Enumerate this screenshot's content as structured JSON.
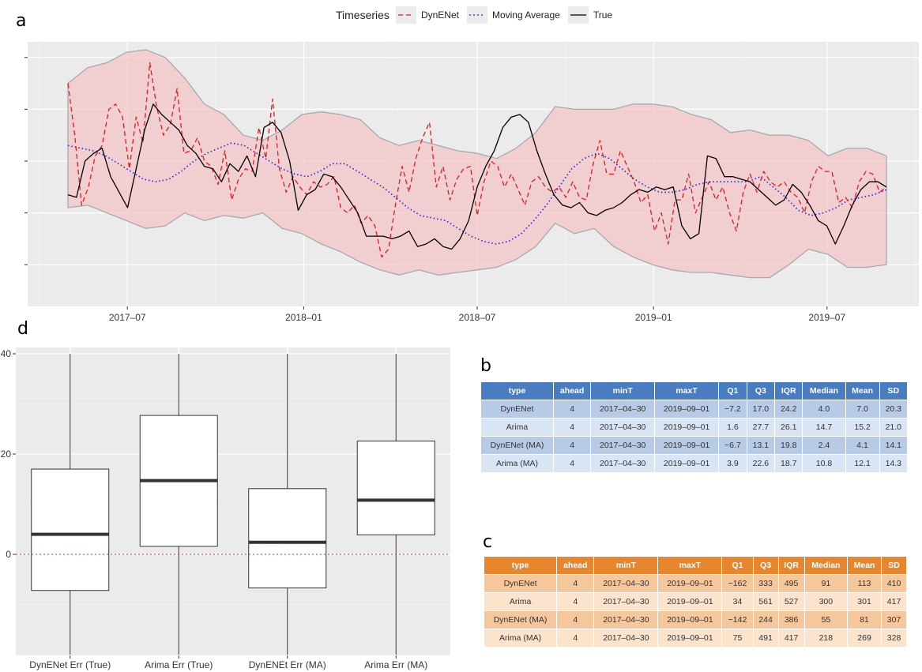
{
  "panels": {
    "a": "a",
    "b": "b",
    "c": "c",
    "d": "d"
  },
  "legend": {
    "title": "Timeseries",
    "items": [
      {
        "label": "DynENet",
        "color": "#e41a1c",
        "dash": "6,4"
      },
      {
        "label": "Moving Average",
        "color": "#2222dd",
        "dash": "2,3"
      },
      {
        "label": "True",
        "color": "#000000",
        "dash": ""
      }
    ]
  },
  "chart_data": [
    {
      "type": "line",
      "panel": "a",
      "x_start": "2017-04-30",
      "x_end": "2019-09-01",
      "x_tick_labels": [
        "2017–07",
        "2018–01",
        "2018–07",
        "2019–01",
        "2019–07"
      ],
      "x_tick_dates": [
        "2017-07-01",
        "2018-01-01",
        "2018-07-01",
        "2019-01-01",
        "2019-07-01"
      ],
      "y_axis_labels": "hidden",
      "ylim": [
        0,
        100
      ],
      "grid": true,
      "legend_position": "top",
      "series": [
        {
          "name": "True",
          "color": "#000000",
          "values": [
            37,
            36,
            50,
            53,
            55,
            44,
            38,
            32,
            47,
            62,
            72,
            68,
            65,
            62,
            56,
            53,
            48,
            47,
            42,
            49,
            46,
            52,
            44,
            63,
            65,
            61,
            50,
            31,
            37,
            39,
            45,
            44,
            40,
            35,
            30,
            21,
            21,
            21,
            20,
            21,
            23,
            17,
            18,
            20,
            17,
            16,
            20,
            27,
            40,
            48,
            54,
            63,
            67,
            68,
            65,
            54,
            45,
            37,
            33,
            32,
            34,
            30,
            29,
            31,
            32,
            34,
            37,
            39,
            38,
            40,
            39,
            40,
            25,
            20,
            22,
            52,
            51,
            44,
            44,
            43,
            42,
            39,
            36,
            33,
            35,
            41,
            38,
            33,
            27,
            25,
            18,
            25,
            33,
            39,
            42,
            42,
            40
          ]
        },
        {
          "name": "DynENet",
          "color": "#e41a1c",
          "values": [
            80,
            60,
            33,
            40,
            52,
            56,
            70,
            72,
            67,
            47,
            67,
            57,
            88,
            71,
            60,
            64,
            78,
            53,
            54,
            59,
            50,
            48,
            41,
            54,
            35,
            43,
            47,
            46,
            63,
            51,
            74,
            47,
            38,
            44,
            40,
            37,
            42,
            40,
            41,
            44,
            32,
            30,
            33,
            26,
            29,
            25,
            13,
            16,
            33,
            48,
            38,
            51,
            59,
            65,
            40,
            48,
            35,
            43,
            47,
            48,
            29,
            42,
            50,
            48,
            40,
            45,
            39,
            33,
            42,
            44,
            40,
            38,
            40,
            36,
            42,
            36,
            35,
            49,
            58,
            45,
            45,
            54,
            48,
            42,
            34,
            37,
            23,
            30,
            18,
            35,
            35,
            45,
            30,
            36,
            42,
            35,
            40,
            30,
            23,
            38,
            45,
            38,
            46,
            42,
            40,
            42,
            38,
            36,
            30,
            42,
            48,
            46,
            46,
            34,
            36,
            32,
            42,
            46,
            45,
            38,
            40
          ]
        },
        {
          "name": "Moving Average",
          "color": "#2222dd",
          "values": [
            56,
            55,
            54,
            52,
            49,
            46,
            43,
            42,
            43,
            46,
            50,
            53,
            55,
            57,
            56,
            53,
            50,
            47,
            45,
            44,
            46,
            49,
            49,
            46,
            43,
            40,
            36,
            32,
            29,
            28,
            27,
            24,
            21,
            19,
            18,
            19,
            22,
            27,
            33,
            40,
            47,
            51,
            53,
            51,
            47,
            43,
            40,
            38,
            38,
            39,
            41,
            42,
            42,
            42,
            42,
            44,
            40,
            36,
            31,
            29,
            30,
            32,
            35,
            36,
            37,
            39
          ]
        }
      ],
      "band_upper": [
        80,
        86,
        88,
        92,
        93,
        90,
        82,
        72,
        68,
        60,
        58,
        62,
        68,
        69,
        68,
        66,
        59,
        56,
        58,
        56,
        54,
        53,
        51,
        55,
        61,
        71,
        70,
        70,
        70,
        72,
        72,
        71,
        68,
        66,
        61,
        62,
        60,
        60,
        58,
        52,
        55,
        55,
        52
      ],
      "band_lower": [
        32,
        33,
        30,
        27,
        24,
        25,
        30,
        27,
        29,
        28,
        30,
        24,
        22,
        18,
        15,
        11,
        8,
        6,
        8,
        6,
        7,
        8,
        9,
        12,
        17,
        26,
        22,
        24,
        17,
        13,
        10,
        8,
        7,
        7,
        6,
        5,
        5,
        10,
        16,
        14,
        9,
        9,
        10
      ]
    },
    {
      "type": "box",
      "panel": "d",
      "categories": [
        "DynENet Err (True)",
        "Arima Err (True)",
        "DynENEt Err (MA)",
        "Arima Err (MA)"
      ],
      "y_tick_labels": [
        "0",
        "20",
        "40"
      ],
      "ylim": [
        -20,
        40
      ],
      "reference_line": 0,
      "boxes": [
        {
          "q1": -7.2,
          "median": 4.0,
          "q3": 17.0,
          "whisker_low": -20,
          "whisker_high": 40
        },
        {
          "q1": 1.6,
          "median": 14.7,
          "q3": 27.7,
          "whisker_low": -20,
          "whisker_high": 40
        },
        {
          "q1": -6.7,
          "median": 2.4,
          "q3": 13.1,
          "whisker_low": -20,
          "whisker_high": 40
        },
        {
          "q1": 3.9,
          "median": 10.8,
          "q3": 22.6,
          "whisker_low": -20,
          "whisker_high": 40
        }
      ]
    },
    {
      "type": "table",
      "panel": "b",
      "columns": [
        "type",
        "ahead",
        "minT",
        "maxT",
        "Q1",
        "Q3",
        "IQR",
        "Median",
        "Mean",
        "SD"
      ],
      "rows": [
        [
          "DynENet",
          "4",
          "2017–04–30",
          "2019–09–01",
          "−7.2",
          "17.0",
          "24.2",
          "4.0",
          "7.0",
          "20.3"
        ],
        [
          "Arima",
          "4",
          "2017–04–30",
          "2019–09–01",
          "1.6",
          "27.7",
          "26.1",
          "14.7",
          "15.2",
          "21.0"
        ],
        [
          "DynENet (MA)",
          "4",
          "2017–04–30",
          "2019–09–01",
          "−6.7",
          "13.1",
          "19.8",
          "2.4",
          "4.1",
          "14.1"
        ],
        [
          "Arima (MA)",
          "4",
          "2017–04–30",
          "2019–09–01",
          "3.9",
          "22.6",
          "18.7",
          "10.8",
          "12.1",
          "14.3"
        ]
      ]
    },
    {
      "type": "table",
      "panel": "c",
      "columns": [
        "type",
        "ahead",
        "minT",
        "maxT",
        "Q1",
        "Q3",
        "IQR",
        "Median",
        "Mean",
        "SD"
      ],
      "rows": [
        [
          "DynENet",
          "4",
          "2017–04–30",
          "2019–09–01",
          "−162",
          "333",
          "495",
          "91",
          "113",
          "410"
        ],
        [
          "Arima",
          "4",
          "2017–04–30",
          "2019–09–01",
          "34",
          "561",
          "527",
          "300",
          "301",
          "417"
        ],
        [
          "DynENet (MA)",
          "4",
          "2017–04–30",
          "2019–09–01",
          "−142",
          "244",
          "386",
          "55",
          "81",
          "307"
        ],
        [
          "Arima (MA)",
          "4",
          "2017–04–30",
          "2019–09–01",
          "75",
          "491",
          "417",
          "218",
          "269",
          "328"
        ]
      ]
    }
  ]
}
